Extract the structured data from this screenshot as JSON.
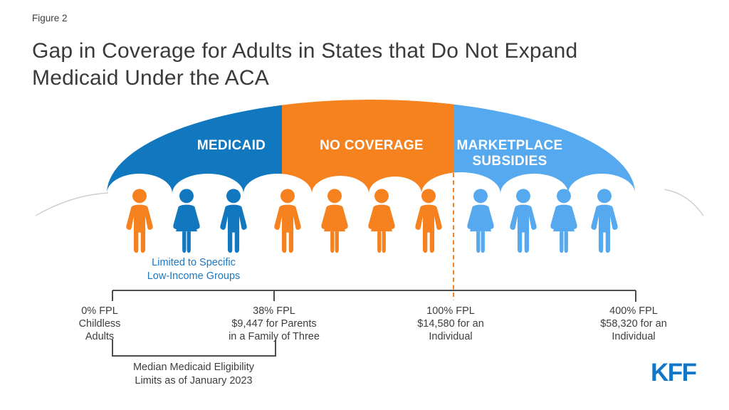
{
  "header": {
    "figure_label": "Figure 2",
    "title_line1": "Gap in Coverage for Adults in States that Do Not Expand",
    "title_line2": "Medicaid Under the ACA"
  },
  "palette": {
    "dark_blue": "#1177be",
    "orange": "#f5821f",
    "light_blue": "#56a9ee",
    "kff_blue": "#1476c6",
    "text_dark": "#3d3d3d",
    "axis_line": "#4d4d4d"
  },
  "arch": {
    "segments": [
      {
        "name": "medicaid",
        "label": "MEDICAID",
        "color": "#1177be"
      },
      {
        "name": "no-coverage",
        "label": "NO COVERAGE",
        "color": "#f5821f"
      },
      {
        "name": "marketplace-subsidies",
        "label_line1": "MARKETPLACE",
        "label_line2": "SUBSIDIES",
        "color": "#56a9ee"
      }
    ]
  },
  "people": [
    {
      "group": "medicaid",
      "gender": "male",
      "color": "#f5821f"
    },
    {
      "group": "medicaid",
      "gender": "female",
      "color": "#1177be"
    },
    {
      "group": "medicaid",
      "gender": "male",
      "color": "#1177be"
    },
    {
      "group": "no-coverage",
      "gender": "male",
      "color": "#f5821f"
    },
    {
      "group": "no-coverage",
      "gender": "female",
      "color": "#f5821f"
    },
    {
      "group": "no-coverage",
      "gender": "female",
      "color": "#f5821f"
    },
    {
      "group": "no-coverage",
      "gender": "male",
      "color": "#f5821f"
    },
    {
      "group": "marketplace-subsidies",
      "gender": "female",
      "color": "#56a9ee"
    },
    {
      "group": "marketplace-subsidies",
      "gender": "male",
      "color": "#56a9ee"
    },
    {
      "group": "marketplace-subsidies",
      "gender": "female",
      "color": "#56a9ee"
    },
    {
      "group": "marketplace-subsidies",
      "gender": "male",
      "color": "#56a9ee"
    }
  ],
  "notes": {
    "limited_line1": "Limited to Specific",
    "limited_line2": "Low-Income Groups",
    "median_line1": "Median Medicaid Eligibility",
    "median_line2": "Limits as of January 2023"
  },
  "axis": {
    "ticks": [
      {
        "line1": "0% FPL",
        "line2": "Childless",
        "line3": "Adults"
      },
      {
        "line1": "38% FPL",
        "line2": "$9,447 for Parents",
        "line3": "in a Family of Three"
      },
      {
        "line1": "100% FPL",
        "line2": "$14,580 for an",
        "line3": "Individual"
      },
      {
        "line1": "400% FPL",
        "line2": "$58,320 for an",
        "line3": "Individual"
      }
    ]
  },
  "footer": {
    "logo_text": "KFF"
  }
}
